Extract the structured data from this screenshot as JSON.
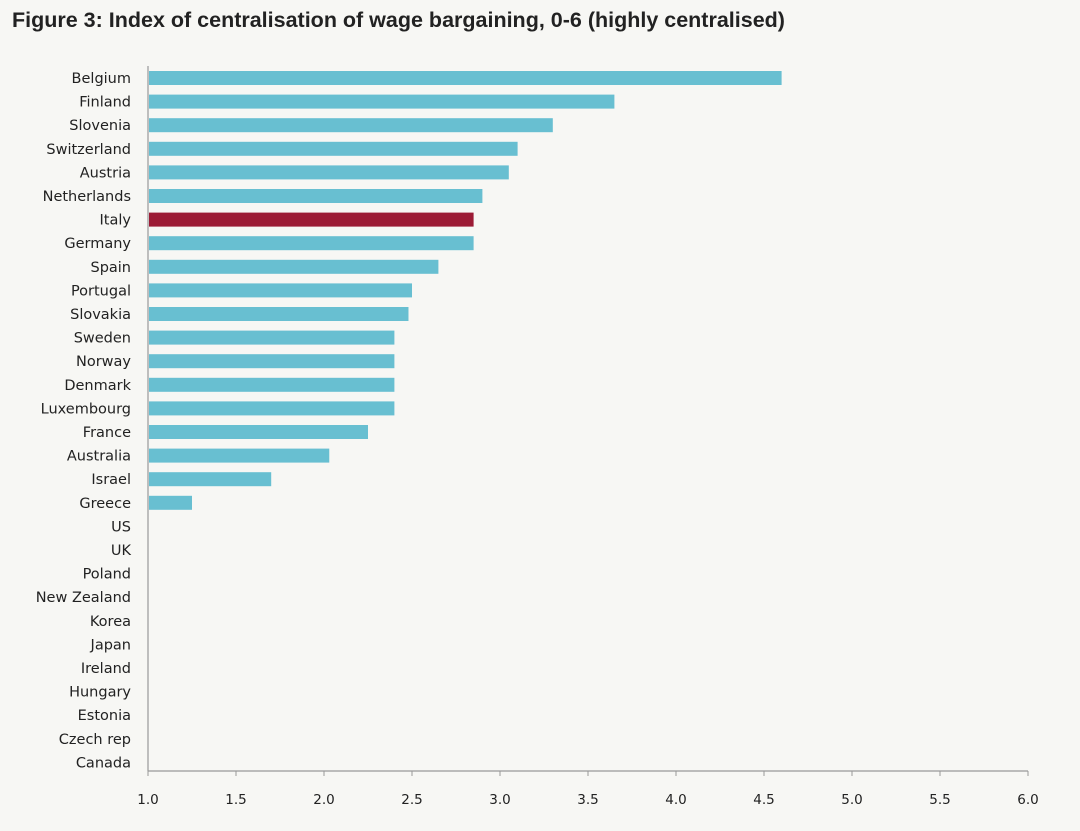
{
  "title": "Figure 3: Index of centralisation of wage bargaining, 0-6 (highly centralised)",
  "chart_data": {
    "type": "bar",
    "orientation": "horizontal",
    "title": "Figure 3: Index of centralisation of wage bargaining, 0-6 (highly centralised)",
    "xlabel": "",
    "ylabel": "",
    "xlim": [
      1.0,
      6.0
    ],
    "xticks": [
      "1.0",
      "1.5",
      "2.0",
      "2.5",
      "3.0",
      "3.5",
      "4.0",
      "4.5",
      "5.0",
      "5.5",
      "6.0"
    ],
    "grid": false,
    "categories": [
      "Belgium",
      "Finland",
      "Slovenia",
      "Switzerland",
      "Austria",
      "Netherlands",
      "Italy",
      "Germany",
      "Spain",
      "Portugal",
      "Slovakia",
      "Sweden",
      "Norway",
      "Denmark",
      "Luxembourg",
      "France",
      "Australia",
      "Israel",
      "Greece",
      "US",
      "UK",
      "Poland",
      "New Zealand",
      "Korea",
      "Japan",
      "Ireland",
      "Hungary",
      "Estonia",
      "Czech rep",
      "Canada"
    ],
    "values": [
      4.6,
      3.65,
      3.3,
      3.1,
      3.05,
      2.9,
      2.85,
      2.85,
      2.65,
      2.5,
      2.48,
      2.4,
      2.4,
      2.4,
      2.4,
      2.25,
      2.03,
      1.7,
      1.25,
      1.0,
      1.0,
      1.0,
      1.0,
      1.0,
      1.0,
      1.0,
      1.0,
      1.0,
      1.0,
      1.0
    ],
    "highlight": "Italy",
    "colors": {
      "bar": "#68bfd1",
      "highlight": "#9c1b35",
      "axis": "#999999",
      "text": "#222222"
    }
  }
}
